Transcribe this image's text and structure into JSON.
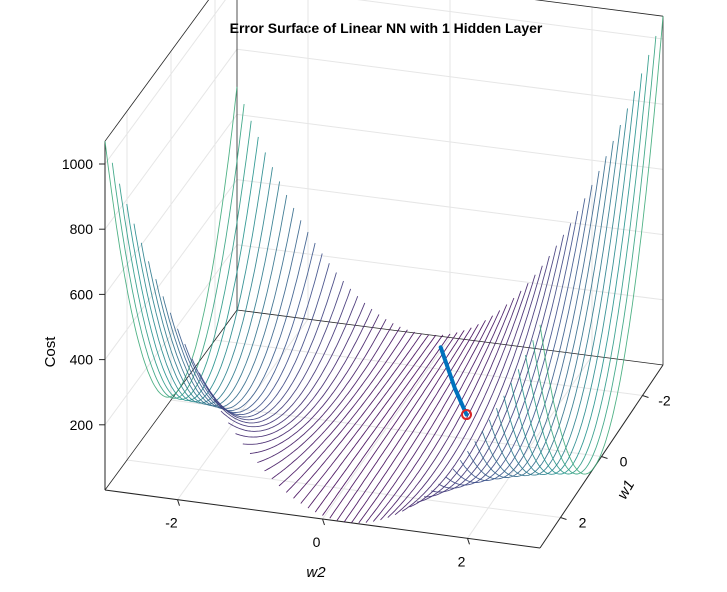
{
  "chart_data": {
    "type": "surface3d",
    "title": "Error Surface of Linear NN with 1 Hidden Layer",
    "xlabel": "w2",
    "ylabel": "w1",
    "zlabel": "Cost",
    "xticks": [
      "-2",
      "0",
      "2"
    ],
    "yticks": [
      "-2",
      "0",
      "2"
    ],
    "zticks": [
      "200",
      "400",
      "600",
      "800",
      "1000"
    ],
    "xlim": [
      -3,
      3
    ],
    "ylim": [
      -3,
      3
    ],
    "zlim": [
      0,
      1100
    ],
    "grid": true,
    "colormap": "viridis",
    "surface": {
      "description": "cost = (1 - w1*w2)^2 style saddle surface drawn as contour-like mesh lines",
      "max_cost": 1070,
      "min_cost": 0
    },
    "path": {
      "name": "gradient descent trajectory",
      "color": "#0072BD",
      "points": [
        {
          "w1": -0.2,
          "w2": 0.7,
          "cost": 250
        },
        {
          "w1": 0.15,
          "w2": 1.0,
          "cost": 165
        },
        {
          "w1": 0.45,
          "w2": 1.25,
          "cost": 120
        }
      ],
      "end_marker_color": "#D62728"
    }
  }
}
